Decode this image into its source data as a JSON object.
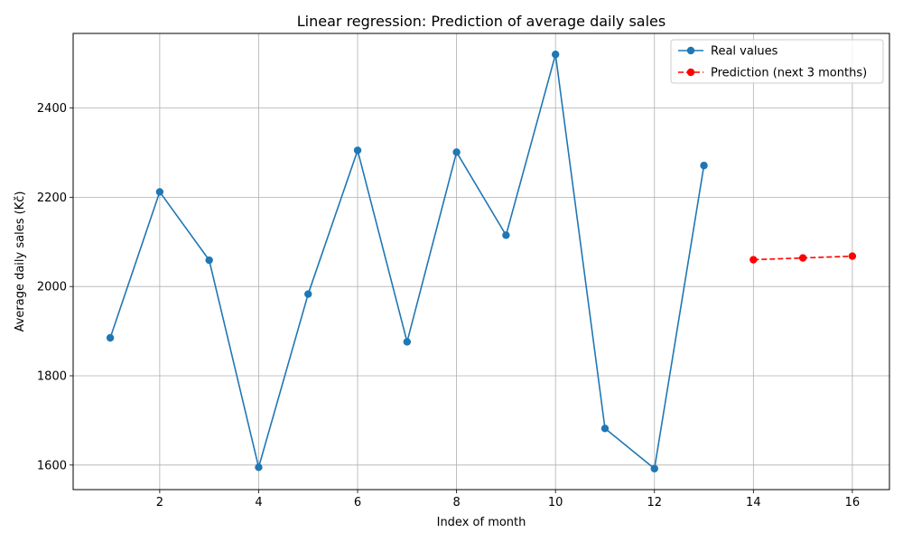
{
  "chart_data": {
    "type": "line",
    "title": "Linear regression: Prediction of average daily sales",
    "xlabel": "Index of month",
    "ylabel": "Average daily sales (Kč)",
    "xlim": [
      0.25,
      16.75
    ],
    "ylim": [
      1545,
      2567
    ],
    "x_ticks": [
      2,
      4,
      6,
      8,
      10,
      12,
      14,
      16
    ],
    "y_ticks": [
      1600,
      1800,
      2000,
      2200,
      2400
    ],
    "grid": true,
    "legend_position": "top-right",
    "series": [
      {
        "name": "Real values",
        "color": "#1f77b4",
        "line_style": "solid",
        "marker": "circle",
        "x": [
          1,
          2,
          3,
          4,
          5,
          6,
          7,
          8,
          9,
          10,
          11,
          12,
          13
        ],
        "values": [
          1885,
          2212,
          2059,
          1595,
          1983,
          2305,
          1876,
          2301,
          2115,
          2520,
          1682,
          1592,
          2271
        ]
      },
      {
        "name": "Prediction (next 3 months)",
        "color": "#ff0000",
        "line_style": "dashed",
        "marker": "circle",
        "x": [
          14,
          15,
          16
        ],
        "values": [
          2060,
          2064,
          2068
        ]
      }
    ]
  }
}
